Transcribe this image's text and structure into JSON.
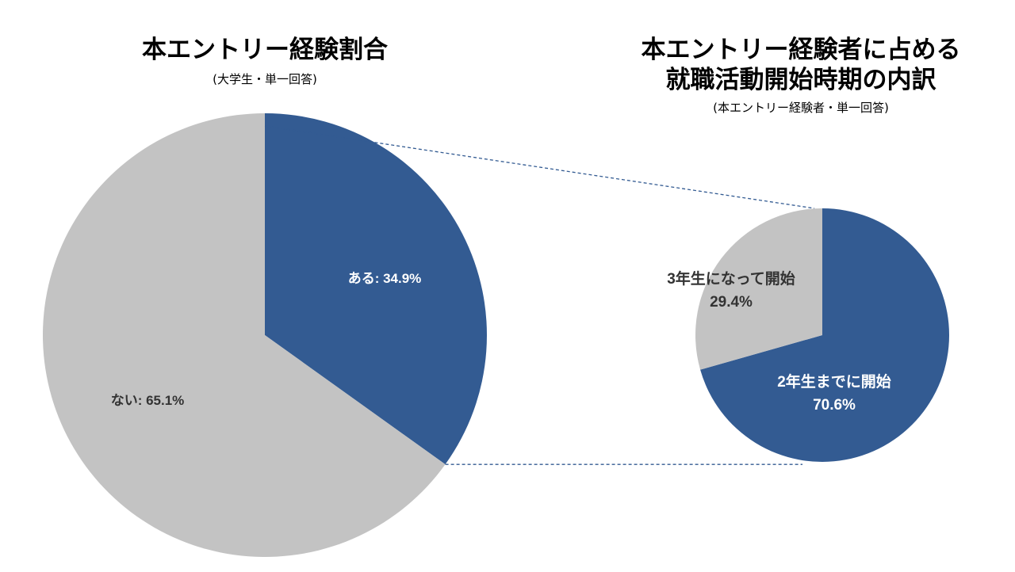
{
  "chart_data": [
    {
      "type": "pie",
      "title": "本エントリー経験割合",
      "subtitle": "(大学生・単一回答)",
      "slices": [
        {
          "label": "ある",
          "value": 34.9,
          "display": "ある: 34.9%",
          "color": "#335b92"
        },
        {
          "label": "ない",
          "value": 65.1,
          "display": "ない: 65.1%",
          "color": "#c3c3c3"
        }
      ]
    },
    {
      "type": "pie",
      "title_line1": "本エントリー経験者に占める",
      "title_line2": "就職活動開始時期の内訳",
      "subtitle": "(本エントリー経験者・単一回答)",
      "slices": [
        {
          "label": "2年生までに開始",
          "value": 70.6,
          "display_pct": "70.6%",
          "color": "#335b92"
        },
        {
          "label": "3年生になって開始",
          "value": 29.4,
          "display_pct": "29.4%",
          "color": "#c3c3c3"
        }
      ]
    }
  ]
}
